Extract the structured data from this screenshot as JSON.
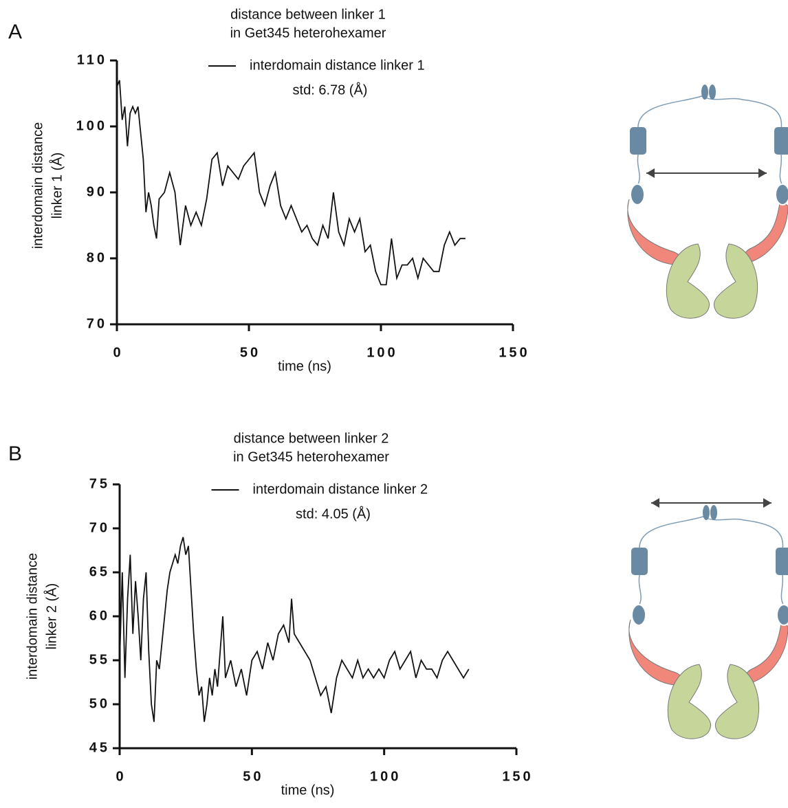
{
  "chart_data": [
    {
      "type": "line",
      "panel_label": "A",
      "title": [
        "distance between linker 1",
        "in Get345 heterohexamer"
      ],
      "x_label": "time (ns)",
      "y_label": [
        "interdomain distance",
        "linker 1 (Å)"
      ],
      "annotation": "std: 6.78 (Å)",
      "xlim": [
        0,
        150
      ],
      "xticks": [
        0,
        50,
        100,
        150
      ],
      "ylim": [
        70,
        110
      ],
      "yticks": [
        70,
        80,
        90,
        100,
        110
      ],
      "x": [
        0,
        1,
        2,
        3,
        4,
        5,
        6,
        7,
        8,
        9,
        10,
        11,
        12,
        13,
        14,
        15,
        16,
        18,
        20,
        22,
        24,
        26,
        28,
        30,
        32,
        34,
        36,
        38,
        40,
        42,
        44,
        46,
        48,
        50,
        52,
        54,
        56,
        58,
        60,
        62,
        64,
        66,
        68,
        70,
        72,
        74,
        76,
        78,
        80,
        82,
        84,
        86,
        88,
        90,
        92,
        94,
        96,
        98,
        100,
        102,
        104,
        106,
        108,
        110,
        112,
        114,
        116,
        118,
        120,
        122,
        124,
        126,
        128,
        130,
        132
      ],
      "series": [
        {
          "name": "interdomain distance linker 1",
          "color": "#111111",
          "values": [
            106,
            107,
            101,
            103,
            97,
            102,
            103,
            102,
            103,
            99,
            95,
            87,
            90,
            88,
            85,
            83,
            89,
            90,
            93,
            90,
            82,
            88,
            85,
            87,
            85,
            89,
            95,
            96,
            91,
            94,
            93,
            92,
            94,
            95,
            96,
            90,
            88,
            91,
            93,
            88,
            86,
            88,
            86,
            84,
            85,
            83,
            82,
            85,
            83,
            90,
            84,
            82,
            86,
            84,
            86,
            81,
            82,
            78,
            76,
            76,
            83,
            77,
            79,
            79,
            80,
            77,
            80,
            79,
            78,
            78,
            82,
            84,
            82,
            83,
            83
          ]
        }
      ]
    },
    {
      "type": "line",
      "panel_label": "B",
      "title": [
        "distance between linker 2",
        "in Get345 heterohexamer"
      ],
      "x_label": "time (ns)",
      "y_label": [
        "interdomain distance",
        "linker 2 (Å)"
      ],
      "annotation": "std: 4.05 (Å)",
      "xlim": [
        0,
        150
      ],
      "xticks": [
        0,
        50,
        100,
        150
      ],
      "ylim": [
        45,
        75
      ],
      "yticks": [
        45,
        50,
        55,
        60,
        65,
        70,
        75
      ],
      "x": [
        0,
        1,
        2,
        3,
        4,
        5,
        6,
        7,
        8,
        9,
        10,
        11,
        12,
        13,
        14,
        15,
        16,
        17,
        18,
        19,
        20,
        21,
        22,
        23,
        24,
        25,
        26,
        27,
        28,
        29,
        30,
        31,
        32,
        33,
        34,
        35,
        36,
        37,
        38,
        39,
        40,
        42,
        44,
        46,
        48,
        50,
        52,
        54,
        56,
        58,
        60,
        62,
        64,
        65,
        66,
        68,
        70,
        72,
        74,
        76,
        78,
        80,
        82,
        84,
        86,
        88,
        90,
        92,
        94,
        96,
        98,
        100,
        102,
        104,
        106,
        108,
        110,
        112,
        114,
        116,
        118,
        120,
        122,
        124,
        126,
        128,
        130,
        132
      ],
      "series": [
        {
          "name": "interdomain distance linker 2",
          "color": "#111111",
          "values": [
            55,
            65,
            53,
            62,
            67,
            58,
            64,
            60,
            55,
            62,
            65,
            56,
            50,
            48,
            55,
            54,
            57,
            60,
            63,
            65,
            66,
            67,
            66,
            68,
            69,
            67,
            68,
            63,
            58,
            54,
            51,
            52,
            48,
            50,
            53,
            51,
            54,
            52,
            56,
            60,
            53,
            55,
            52,
            54,
            51,
            55,
            56,
            54,
            57,
            55,
            58,
            59,
            57,
            62,
            58,
            57,
            56,
            55,
            53,
            51,
            52,
            49,
            53,
            55,
            54,
            53,
            55,
            53,
            54,
            53,
            54,
            53,
            55,
            56,
            54,
            55,
            56,
            53,
            55,
            54,
            54,
            53,
            55,
            56,
            55,
            54,
            53,
            54
          ]
        }
      ]
    }
  ]
}
